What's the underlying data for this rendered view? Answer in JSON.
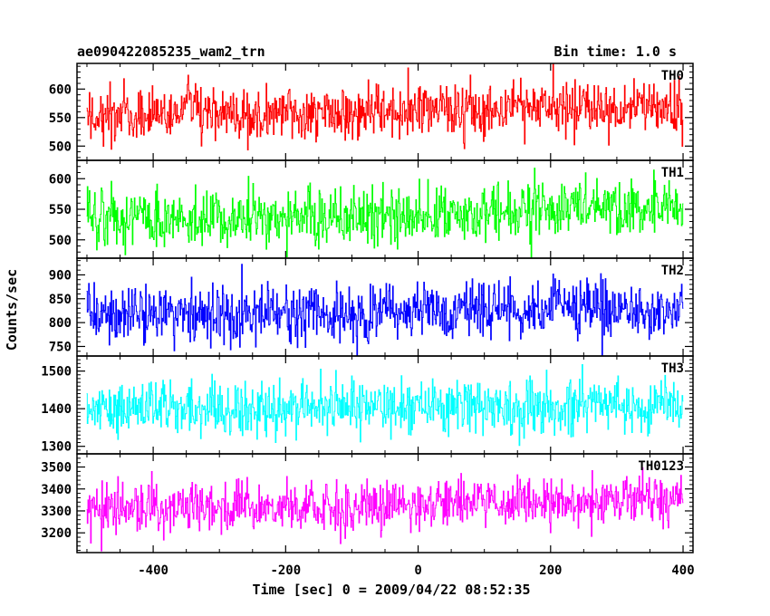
{
  "chart_data": {
    "type": "line",
    "title": "ae090422085235_wam2_trn",
    "subtitle": "Bin time: 1.0 s",
    "xlabel": "Time [sec] 0 = 2009/04/22 08:52:35",
    "ylabel": "Counts/sec",
    "xlim": [
      -515,
      415
    ],
    "x_ticks": [
      -400,
      -200,
      0,
      200,
      400
    ],
    "bin_time_s": 1.0,
    "x_range": [
      -500,
      400
    ],
    "panels": [
      {
        "name": "TH0",
        "color": "#ff0000",
        "ylim": [
          475,
          645
        ],
        "y_ticks": [
          500,
          550,
          600
        ],
        "mean": 560,
        "noise_sd": 24,
        "trend": [
          [
            -500,
            555
          ],
          [
            -100,
            557
          ],
          [
            100,
            565
          ],
          [
            400,
            565
          ]
        ]
      },
      {
        "name": "TH1",
        "color": "#00ff00",
        "ylim": [
          470,
          630
        ],
        "y_ticks": [
          500,
          550,
          600
        ],
        "mean": 540,
        "noise_sd": 24,
        "trend": [
          [
            -500,
            532
          ],
          [
            0,
            538
          ],
          [
            200,
            548
          ],
          [
            400,
            552
          ]
        ]
      },
      {
        "name": "TH2",
        "color": "#0000ff",
        "ylim": [
          730,
          935
        ],
        "y_ticks": [
          750,
          800,
          850,
          900
        ],
        "mean": 820,
        "noise_sd": 30,
        "trend": [
          [
            -500,
            815
          ],
          [
            0,
            820
          ],
          [
            400,
            830
          ]
        ]
      },
      {
        "name": "TH3",
        "color": "#00ffff",
        "ylim": [
          1280,
          1540
        ],
        "y_ticks": [
          1300,
          1400,
          1500
        ],
        "mean": 1405,
        "noise_sd": 38,
        "trend": [
          [
            -500,
            1400
          ],
          [
            0,
            1405
          ],
          [
            400,
            1408
          ]
        ]
      },
      {
        "name": "TH0123",
        "color": "#ff00ff",
        "ylim": [
          3110,
          3560
        ],
        "y_ticks": [
          3200,
          3300,
          3400,
          3500
        ],
        "mean": 3330,
        "noise_sd": 58,
        "trend": [
          [
            -500,
            3315
          ],
          [
            -100,
            3315
          ],
          [
            100,
            3345
          ],
          [
            400,
            3355
          ]
        ]
      }
    ]
  }
}
